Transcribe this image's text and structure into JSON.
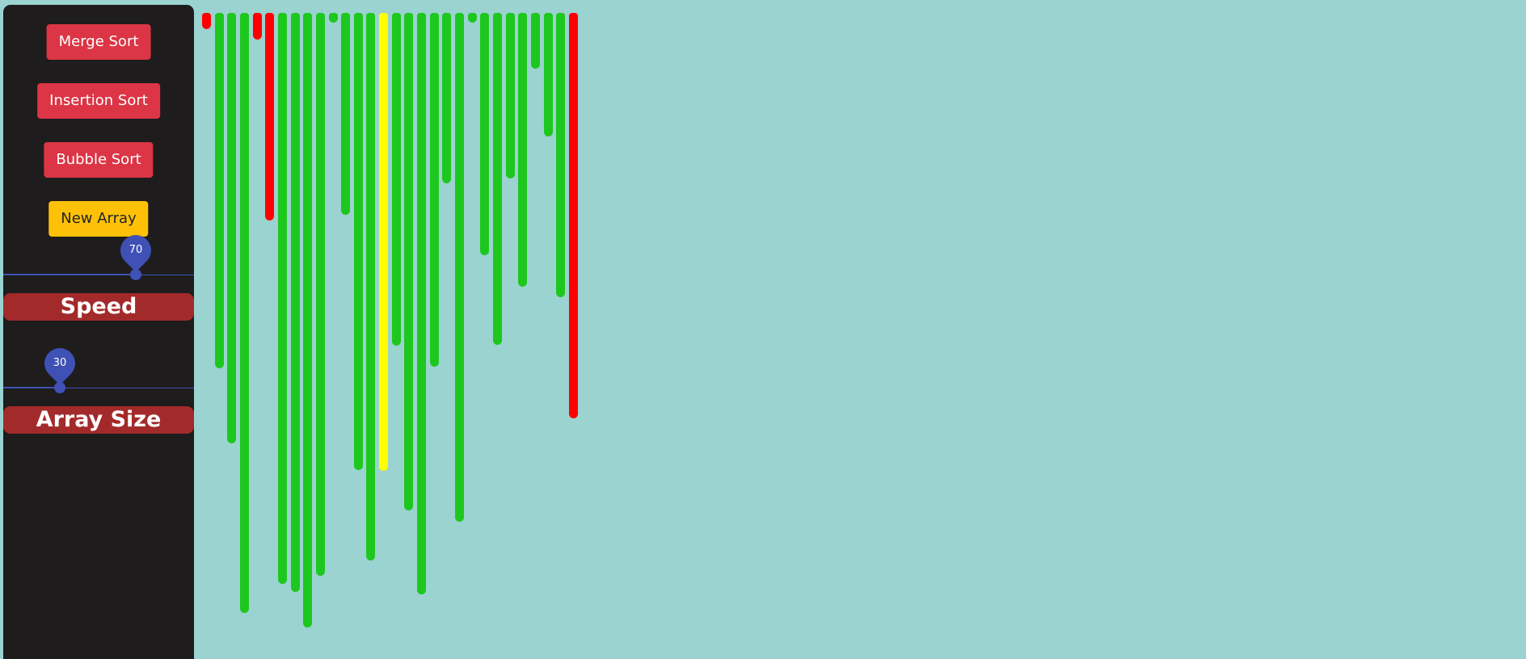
{
  "sidebar": {
    "buttons": {
      "merge_sort": "Merge Sort",
      "insertion_sort": "Insertion Sort",
      "bubble_sort": "Bubble Sort",
      "new_array": "New Array"
    },
    "speed": {
      "value": "70",
      "caption": "Speed"
    },
    "array_size": {
      "value": "30",
      "caption": "Array Size"
    }
  },
  "colors": {
    "background": "#9ad3d0",
    "sidebar": "#1e1c1c",
    "button_red": "#dc3545",
    "button_yellow": "#ffc107",
    "slider": "#3f51b5",
    "caption": "#a32a2a",
    "bar_sorted": "#1ec71e",
    "bar_compare": "#ff0000",
    "bar_active": "#ffff00"
  },
  "array": {
    "values": [
      20,
      440,
      533,
      743,
      33,
      257,
      707,
      717,
      761,
      697,
      12,
      250,
      566,
      678,
      567,
      412,
      616,
      720,
      438,
      211,
      630,
      12,
      300,
      411,
      205,
      339,
      69,
      153,
      352,
      502
    ],
    "states": [
      "compare",
      "sorted",
      "sorted",
      "sorted",
      "compare",
      "compare",
      "sorted",
      "sorted",
      "sorted",
      "sorted",
      "sorted",
      "sorted",
      "sorted",
      "sorted",
      "active",
      "sorted",
      "sorted",
      "sorted",
      "sorted",
      "sorted",
      "sorted",
      "sorted",
      "sorted",
      "sorted",
      "sorted",
      "sorted",
      "sorted",
      "sorted",
      "sorted",
      "compare"
    ]
  }
}
